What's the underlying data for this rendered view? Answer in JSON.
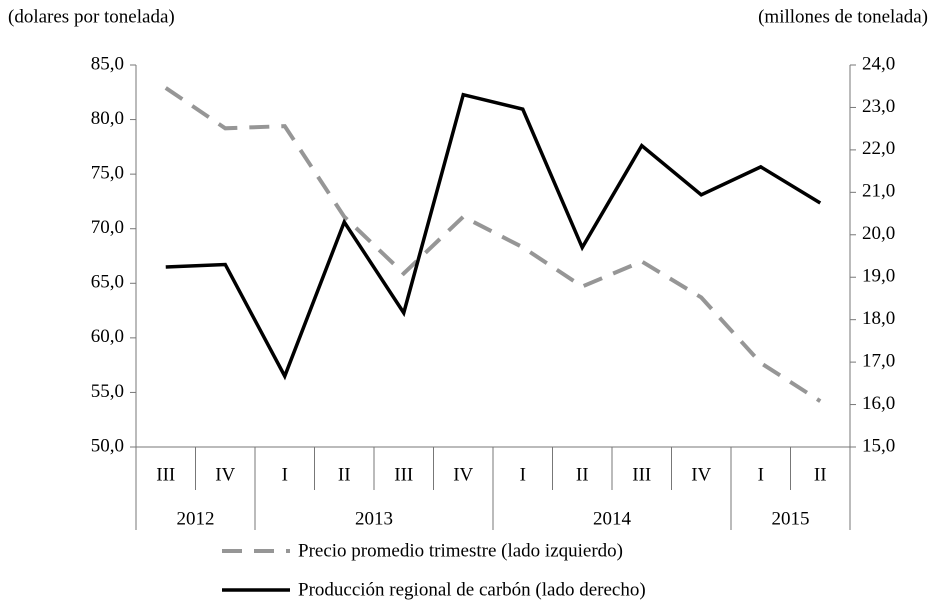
{
  "chart_data": {
    "type": "line",
    "y_label": "(dolares  por tonelada)",
    "y2_label": "(millones  de tonelada)",
    "categories": [
      "III",
      "IV",
      "I",
      "II",
      "III",
      "IV",
      "I",
      "II",
      "III",
      "IV",
      "I",
      "II"
    ],
    "years": [
      "2012",
      null,
      "2013",
      null,
      null,
      null,
      "2014",
      null,
      null,
      null,
      "2015",
      null
    ],
    "series": [
      {
        "name": "Precio promedio trimestre (lado izquierdo)",
        "color": "#969696",
        "dash": true,
        "values": [
          82.9,
          79.2,
          79.4,
          71.1,
          65.9,
          71.1,
          68.3,
          64.7,
          67.0,
          63.7,
          57.7,
          54.2
        ]
      },
      {
        "name": "Producción regional de carbón (lado derecho)",
        "color": "#000000",
        "dash": false,
        "axis": "y2",
        "values": [
          19.24,
          19.3,
          16.67,
          20.3,
          18.16,
          23.3,
          22.96,
          19.7,
          22.1,
          20.94,
          21.6,
          20.75
        ]
      }
    ],
    "ylim": [
      50,
      85
    ],
    "yticks": [
      {
        "value": 50,
        "label": "50,0"
      },
      {
        "value": 55,
        "label": "55,0"
      },
      {
        "value": 60,
        "label": "60,0"
      },
      {
        "value": 65,
        "label": "65,0"
      },
      {
        "value": 70,
        "label": "70,0"
      },
      {
        "value": 75,
        "label": "75,0"
      },
      {
        "value": 80,
        "label": "80,0"
      },
      {
        "value": 85,
        "label": "85,0"
      }
    ],
    "y2lim": [
      15,
      24
    ],
    "y2ticks": [
      {
        "value": 15,
        "label": "15,0"
      },
      {
        "value": 16,
        "label": "16,0"
      },
      {
        "value": 17,
        "label": "17,0"
      },
      {
        "value": 18,
        "label": "18,0"
      },
      {
        "value": 19,
        "label": "19,0"
      },
      {
        "value": 20,
        "label": "20,0"
      },
      {
        "value": 21,
        "label": "21,0"
      },
      {
        "value": 22,
        "label": "22,0"
      },
      {
        "value": 23,
        "label": "23,0"
      },
      {
        "value": 24,
        "label": "24,0"
      }
    ],
    "grid": false
  }
}
